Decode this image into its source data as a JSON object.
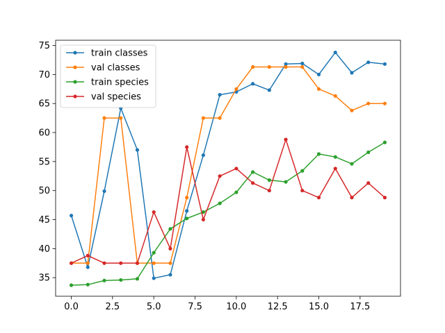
{
  "chart_data": {
    "type": "line",
    "title": "",
    "xlabel": "",
    "ylabel": "",
    "xlim": [
      -0.95,
      19.95
    ],
    "ylim": [
      31.8,
      75.9
    ],
    "grid": false,
    "legend_position": "top-left",
    "xticks": [
      0.0,
      2.5,
      5.0,
      7.5,
      10.0,
      12.5,
      15.0,
      17.5
    ],
    "xtick_labels": [
      "0.0",
      "2.5",
      "5.0",
      "7.5",
      "10.0",
      "12.5",
      "15.0",
      "17.5"
    ],
    "yticks": [
      35,
      40,
      45,
      50,
      55,
      60,
      65,
      70,
      75
    ],
    "ytick_labels": [
      "35",
      "40",
      "45",
      "50",
      "55",
      "60",
      "65",
      "70",
      "75"
    ],
    "x": [
      0,
      1,
      2,
      3,
      4,
      5,
      6,
      7,
      8,
      9,
      10,
      11,
      12,
      13,
      14,
      15,
      16,
      17,
      18,
      19
    ],
    "series": [
      {
        "name": "train classes",
        "color": "#1f77b4",
        "values": [
          45.7,
          36.8,
          49.9,
          64.2,
          57.0,
          34.9,
          35.5,
          46.5,
          56.1,
          66.5,
          67.0,
          68.4,
          67.3,
          71.8,
          71.9,
          70.0,
          73.8,
          70.3,
          72.1,
          71.8
        ]
      },
      {
        "name": "val classes",
        "color": "#ff7f0e",
        "values": [
          37.5,
          37.5,
          62.5,
          62.5,
          37.5,
          37.5,
          37.5,
          48.8,
          62.5,
          62.5,
          67.5,
          71.3,
          71.3,
          71.3,
          71.3,
          67.5,
          66.3,
          63.8,
          65.0,
          65.0
        ]
      },
      {
        "name": "train species",
        "color": "#2ca02c",
        "values": [
          33.7,
          33.8,
          34.5,
          34.6,
          34.8,
          39.3,
          43.4,
          45.2,
          46.3,
          47.8,
          49.7,
          53.2,
          51.8,
          51.5,
          53.4,
          56.3,
          55.8,
          54.6,
          56.6,
          58.3
        ]
      },
      {
        "name": "val species",
        "color": "#d62728",
        "values": [
          37.5,
          38.8,
          37.5,
          37.5,
          37.5,
          46.3,
          40.0,
          57.5,
          45.0,
          52.5,
          53.8,
          51.3,
          50.0,
          58.8,
          50.0,
          48.8,
          53.8,
          48.8,
          51.3,
          48.8
        ]
      }
    ]
  }
}
